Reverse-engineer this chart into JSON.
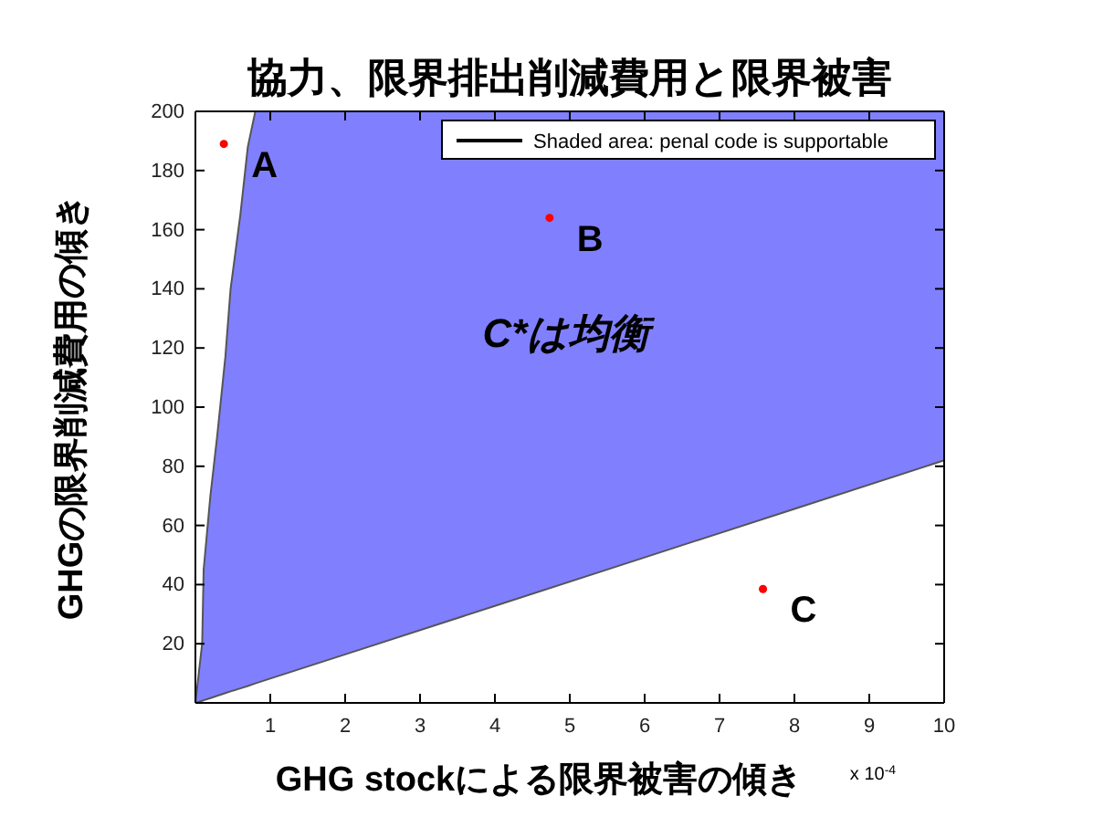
{
  "chart_data": {
    "type": "area",
    "title": "協力、限界排出削減費用と限界被害",
    "xlabel": "GHG stockによる限界被害の傾き",
    "ylabel": "GHGの限界削減費用の傾き",
    "xlim": [
      0,
      10
    ],
    "xticks": [
      1,
      2,
      3,
      4,
      5,
      6,
      7,
      8,
      9,
      10
    ],
    "ylim": [
      0,
      200
    ],
    "yticks": [
      20,
      40,
      60,
      80,
      100,
      120,
      140,
      160,
      180,
      200
    ],
    "grid": false,
    "legend": "top right",
    "series": [
      {
        "name": "Shaded area: penal code is supportable",
        "color": "#8080ff",
        "x": [
          0,
          0.09,
          0.11,
          0.2,
          0.29,
          0.4,
          0.47,
          0.6,
          0.7,
          0.8,
          2,
          4,
          6,
          8,
          10
        ],
        "values": [
          0,
          20,
          45,
          70,
          90,
          117,
          140,
          165,
          188,
          200,
          200,
          200,
          200,
          200,
          200
        ]
      },
      {
        "type": "line",
        "color": "#555555",
        "x": [
          0,
          0.09,
          0.11,
          0.2,
          0.29,
          0.4,
          0.47,
          0.6,
          0.7,
          0.8,
          2,
          4,
          6,
          8,
          10
        ],
        "values": [
          0,
          0.7,
          0.9,
          1.6,
          2.4,
          3.3,
          3.9,
          4.9,
          5.7,
          6.6,
          16.4,
          32.8,
          49.2,
          65.6,
          82
        ]
      },
      {
        "type": "scatter",
        "marker": "circle",
        "color": "#ff0000",
        "x": [
          0.38,
          4.73,
          7.58
        ],
        "values": [
          189,
          164,
          38.5
        ]
      }
    ],
    "annotations": [
      {
        "text": "A",
        "x": 0.38,
        "y": 189
      },
      {
        "text": "B",
        "x": 4.73,
        "y": 164
      },
      {
        "text": "C",
        "x": 7.58,
        "y": 38.5
      },
      "C*は均衡",
      "x 10$^{-4}$"
    ]
  }
}
